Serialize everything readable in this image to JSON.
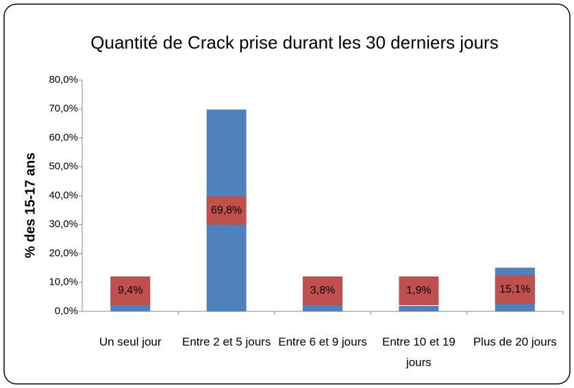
{
  "chart_data": {
    "type": "bar",
    "title": "Quantité de Crack prise durant les 30 derniers jours",
    "y_label": "% des 15-17 ans",
    "categories": [
      "Un seul jour",
      "Entre 2  et 5 jours",
      "Entre 6 et 9 jours",
      "Entre 10 et 19 jours",
      "Plus de 20 jours"
    ],
    "values": [
      9.4,
      69.8,
      3.8,
      1.9,
      15.1
    ],
    "value_labels": [
      "9,4%",
      "69,8%",
      "3,8%",
      "1,9%",
      "15,1%"
    ],
    "color": "#4f81bd",
    "label_color": "#c0504d",
    "ylim": [
      0,
      80
    ],
    "yticks": [
      {
        "value": 0,
        "label": "0,0%"
      },
      {
        "value": 10,
        "label": "10,0%"
      },
      {
        "value": 20,
        "label": "20,0%"
      },
      {
        "value": 30,
        "label": "30,0%"
      },
      {
        "value": 40,
        "label": "40,0%"
      },
      {
        "value": 50,
        "label": "50,0%"
      },
      {
        "value": 60,
        "label": "60,0%"
      },
      {
        "value": 70,
        "label": "70,0%"
      },
      {
        "value": 80,
        "label": "80,0%"
      }
    ],
    "grid": false
  }
}
